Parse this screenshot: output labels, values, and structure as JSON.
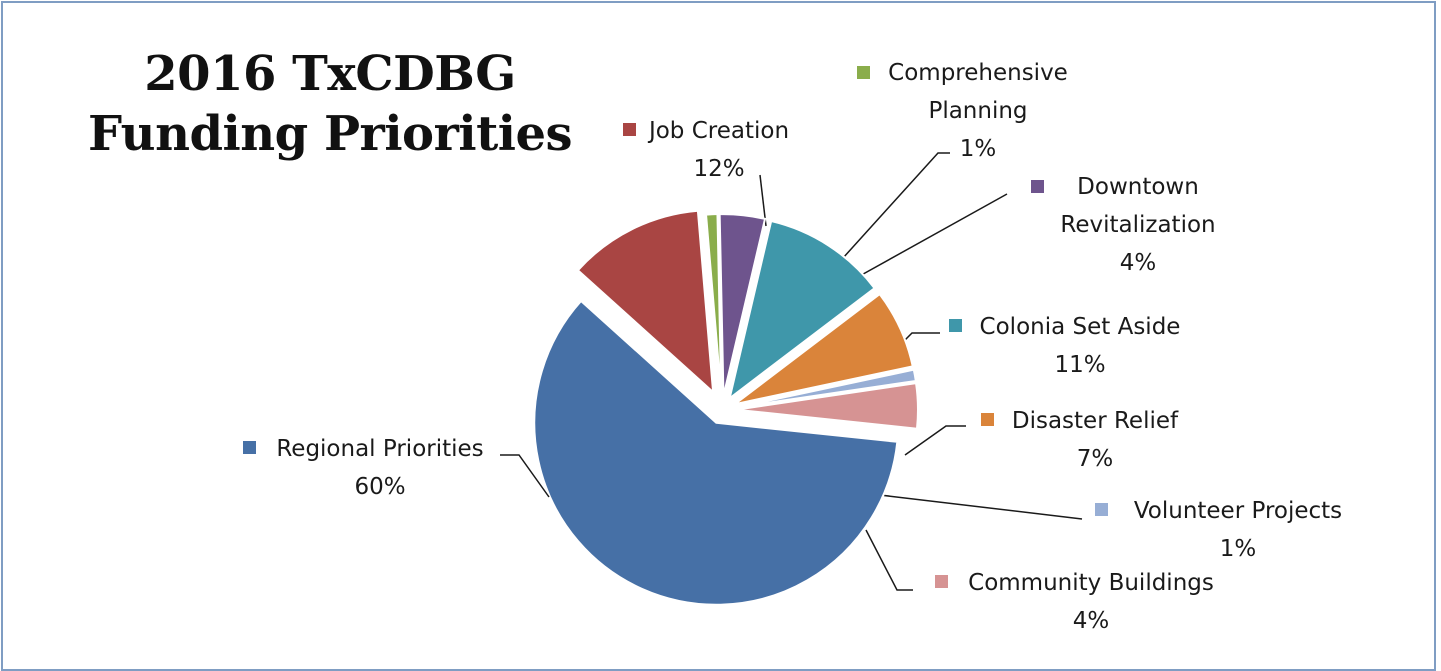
{
  "chart_data": {
    "type": "pie",
    "title_lines": [
      "2016 TxCDBG",
      "Funding Priorities"
    ],
    "colors": {
      "regional": "#4670A6",
      "job": "#A94543",
      "planning": "#8AAD4B",
      "downtown": "#6E548D",
      "colonia": "#3F97AA",
      "disaster": "#DA843A",
      "volunteer": "#97AED5",
      "community": "#D69393"
    },
    "slices": [
      {
        "key": "job",
        "label_lines": [
          "Job Creation"
        ],
        "value": 12,
        "pct": "12%"
      },
      {
        "key": "planning",
        "label_lines": [
          "Comprehensive",
          "Planning"
        ],
        "value": 1,
        "pct": "1%"
      },
      {
        "key": "downtown",
        "label_lines": [
          "Downtown",
          "Revitalization"
        ],
        "value": 4,
        "pct": "4%"
      },
      {
        "key": "colonia",
        "label_lines": [
          "Colonia Set Aside"
        ],
        "value": 11,
        "pct": "11%"
      },
      {
        "key": "disaster",
        "label_lines": [
          "Disaster Relief"
        ],
        "value": 7,
        "pct": "7%"
      },
      {
        "key": "volunteer",
        "label_lines": [
          "Volunteer Projects"
        ],
        "value": 1,
        "pct": "1%"
      },
      {
        "key": "community",
        "label_lines": [
          "Community Buildings"
        ],
        "value": 4,
        "pct": "4%"
      },
      {
        "key": "regional",
        "label_lines": [
          "Regional Priorities"
        ],
        "value": 60,
        "pct": "60%"
      }
    ]
  }
}
